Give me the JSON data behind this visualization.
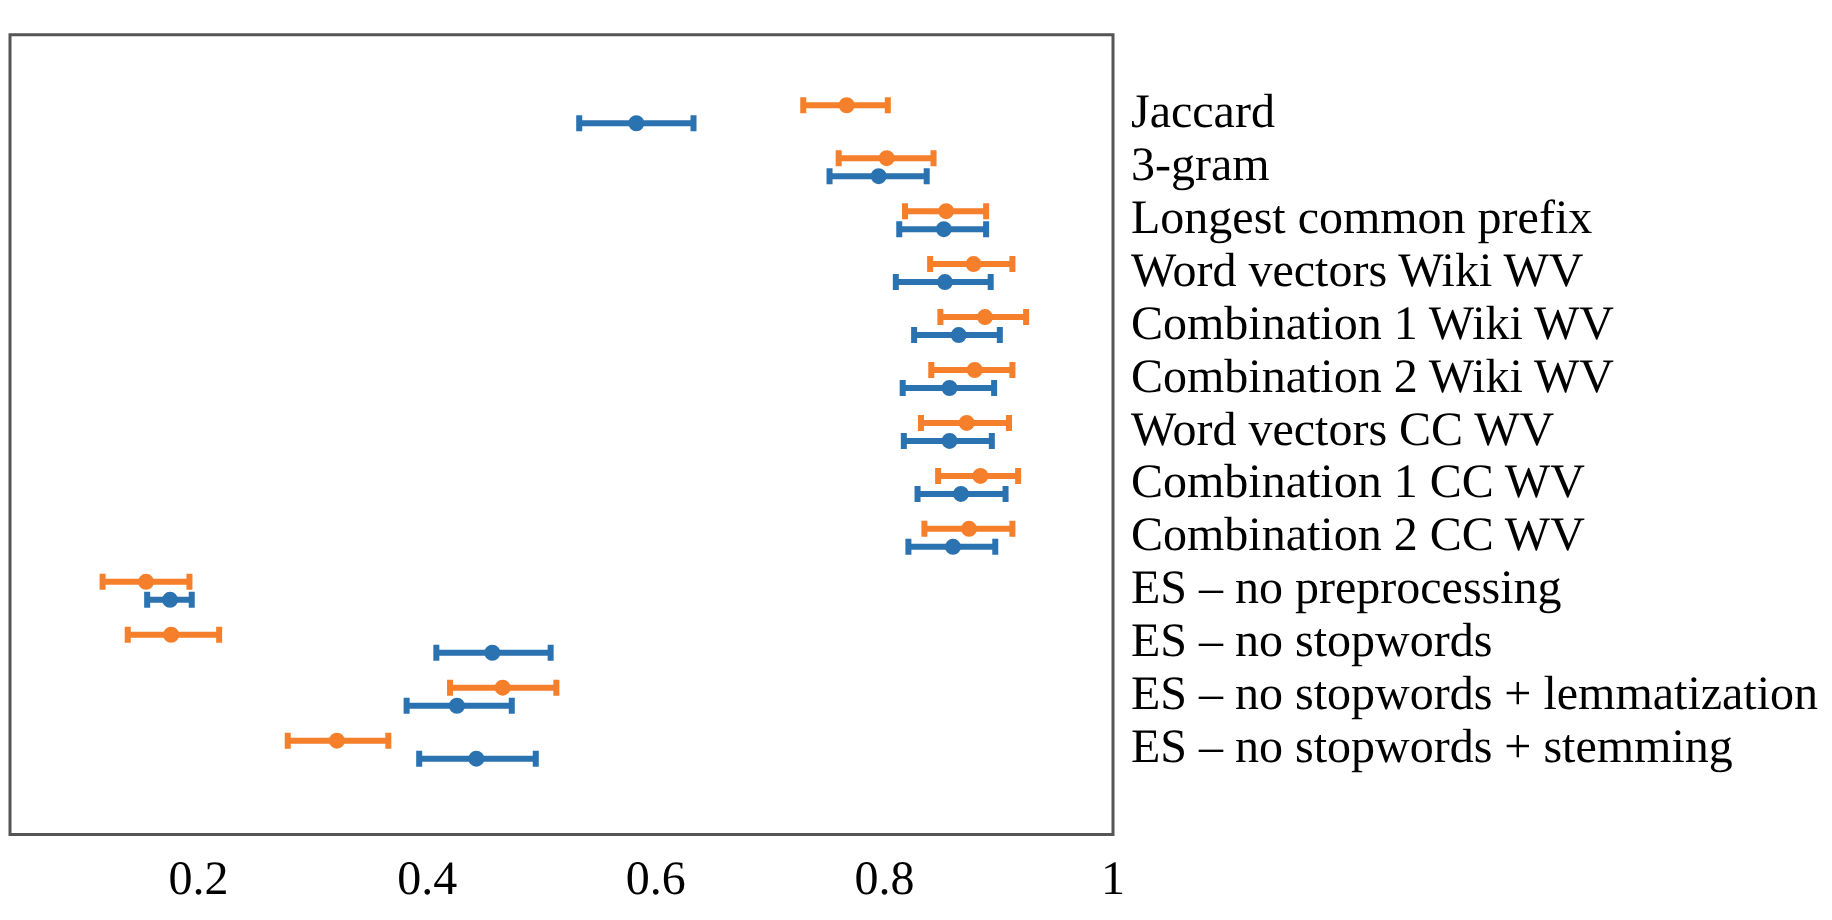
{
  "chart_data": {
    "type": "scatter",
    "orientation": "horizontal",
    "categories": [
      "Jaccard",
      "3-gram",
      "Longest common prefix",
      "Word vectors Wiki WV",
      "Combination 1 Wiki WV",
      "Combination 2 Wiki WV",
      "Word vectors CC WV",
      "Combination 1 CC WV",
      "Combination 2 CC WV",
      "ES – no preprocessing",
      "ES – no stopwords",
      "ES – no stopwords + lemmatization",
      "ES – no stopwords + stemming"
    ],
    "series": [
      {
        "color": "#f57f2a",
        "values": [
          0.767,
          0.802,
          0.854,
          0.878,
          0.888,
          0.879,
          0.872,
          0.884,
          0.874,
          0.154,
          0.176,
          0.466,
          0.321
        ],
        "errors": [
          [
            0.729,
            0.803
          ],
          [
            0.76,
            0.843
          ],
          [
            0.818,
            0.889
          ],
          [
            0.84,
            0.912
          ],
          [
            0.849,
            0.924
          ],
          [
            0.841,
            0.912
          ],
          [
            0.832,
            0.909
          ],
          [
            0.847,
            0.917
          ],
          [
            0.835,
            0.912
          ],
          [
            0.116,
            0.192
          ],
          [
            0.138,
            0.218
          ],
          [
            0.42,
            0.513
          ],
          [
            0.278,
            0.366
          ]
        ]
      },
      {
        "color": "#2b72b0",
        "values": [
          0.583,
          0.795,
          0.852,
          0.853,
          0.865,
          0.857,
          0.857,
          0.867,
          0.86,
          0.175,
          0.457,
          0.426,
          0.443
        ],
        "errors": [
          [
            0.533,
            0.633
          ],
          [
            0.752,
            0.837
          ],
          [
            0.813,
            0.889
          ],
          [
            0.81,
            0.893
          ],
          [
            0.826,
            0.901
          ],
          [
            0.816,
            0.896
          ],
          [
            0.817,
            0.894
          ],
          [
            0.829,
            0.906
          ],
          [
            0.821,
            0.897
          ],
          [
            0.155,
            0.194
          ],
          [
            0.408,
            0.508
          ],
          [
            0.382,
            0.474
          ],
          [
            0.393,
            0.495
          ]
        ]
      }
    ],
    "xlim": [
      0.035,
      1
    ],
    "xticks": [
      0.2,
      0.4,
      0.6,
      0.8,
      1
    ],
    "grid": false,
    "legend": false
  }
}
